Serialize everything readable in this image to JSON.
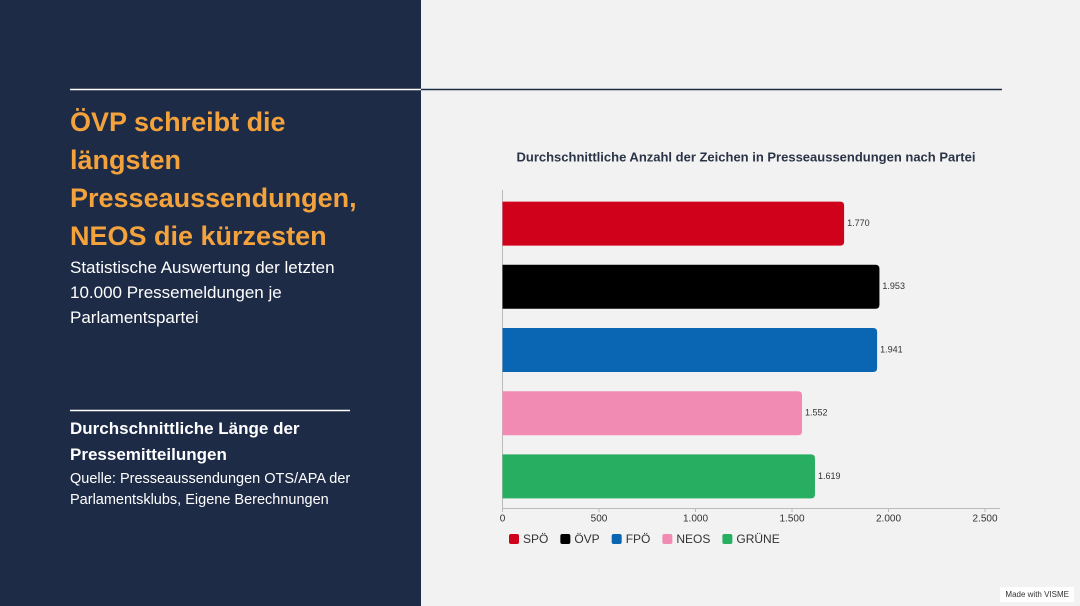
{
  "slide": {
    "title": "ÖVP schreibt die längsten Presseaussendungen, NEOS die kürzesten",
    "subtitle": "Statistische Auswertung der letzten 10.000 Pressemeldungen je Parlamentspartei",
    "heading": "Durchschnittliche Länge der Pressemitteilungen",
    "source": "Quelle: Presseaussendungen OTS/APA der Parlamentsklubs, Eigene Berechnungen",
    "footer": "Made with VISME"
  },
  "chart_data": {
    "type": "hbar",
    "title": "Durchschnittliche Anzahl der Zeichen in Presseaussendungen nach Partei",
    "categories": [
      "SPÖ",
      "ÖVP",
      "FPÖ",
      "NEOS",
      "GRÜNE"
    ],
    "values": [
      1770,
      1953,
      1941,
      1552,
      1619
    ],
    "value_labels": [
      "1.770",
      "1.953",
      "1.941",
      "1.552",
      "1.619"
    ],
    "colors": [
      "#d0021b",
      "#000000",
      "#0a66b3",
      "#f28bb4",
      "#27ae60"
    ],
    "xlim": [
      0,
      2500
    ],
    "xticks": [
      0,
      500,
      {
        "value": 1000,
        "label": "1.000"
      },
      {
        "value": 1500,
        "label": "1.500"
      },
      {
        "value": 2000,
        "label": "2.000"
      },
      {
        "value": 2500,
        "label": "2.500"
      }
    ]
  }
}
